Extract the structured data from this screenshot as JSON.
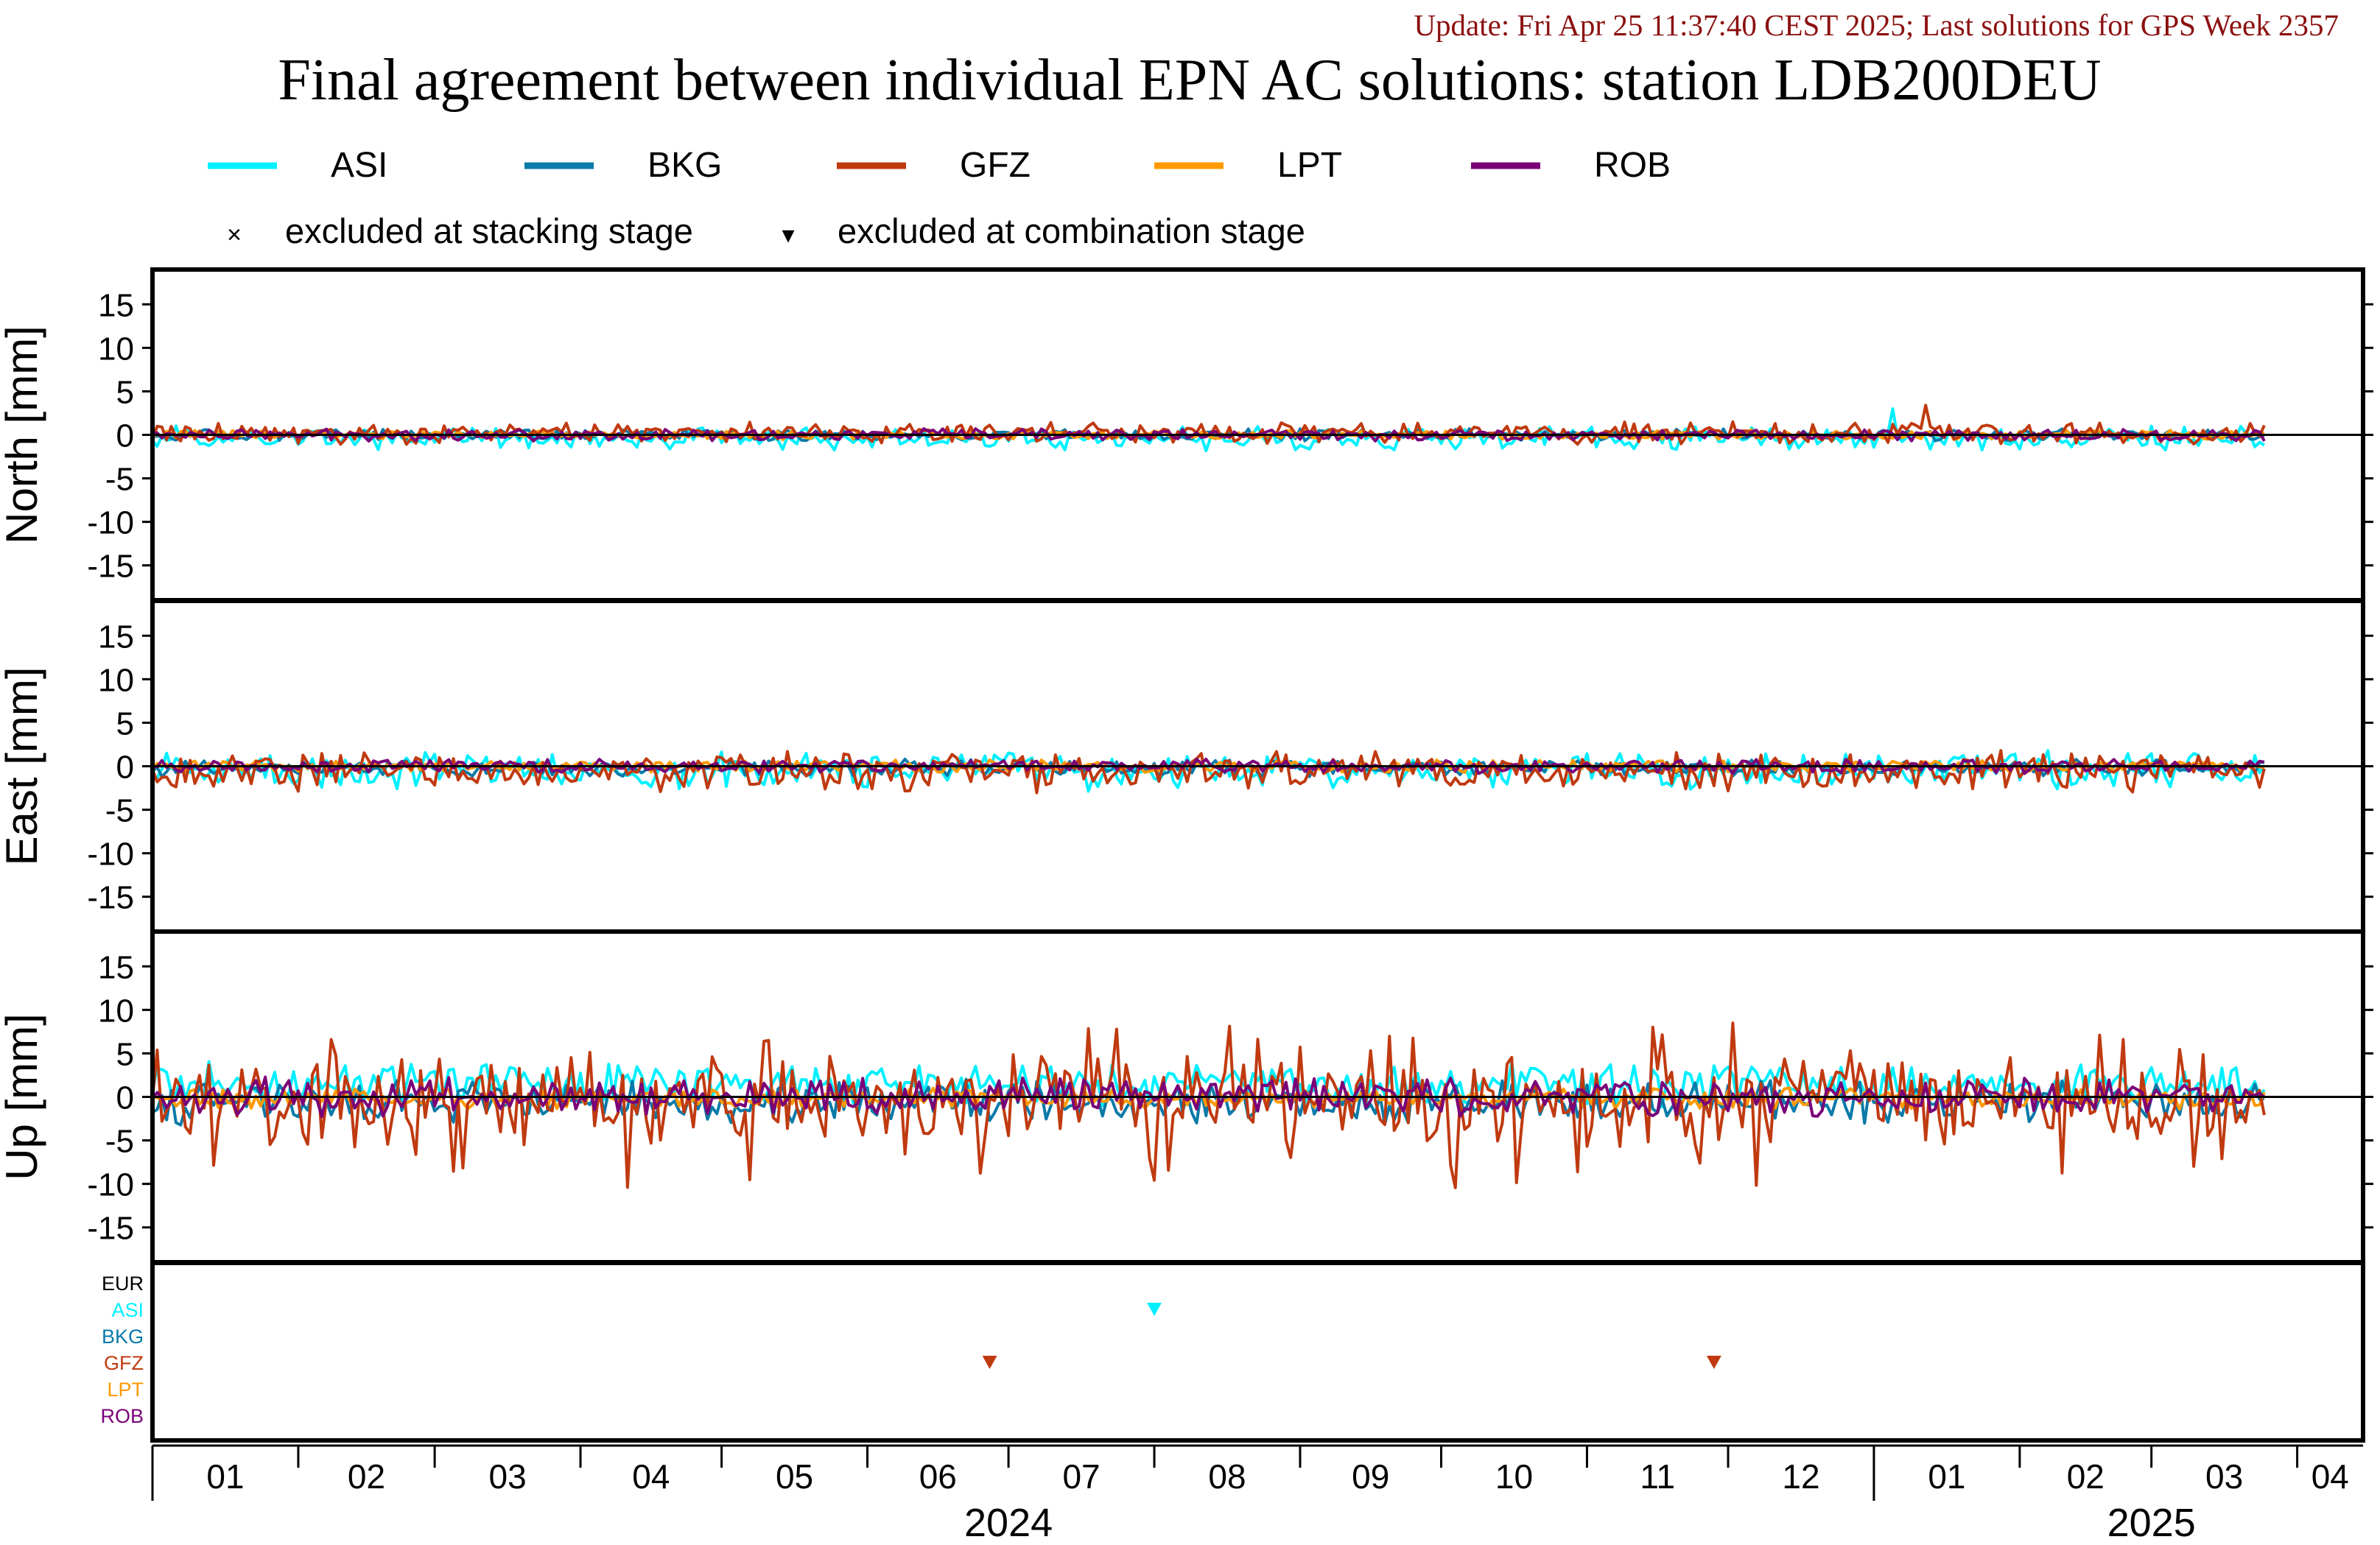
{
  "header": {
    "update": "Update: Fri Apr 25 11:37:40 CEST 2025; Last solutions for GPS Week 2357",
    "title": "Final agreement between individual EPN AC solutions: station LDB200DEU"
  },
  "legend": {
    "series": [
      {
        "name": "ASI",
        "color": "#00f0ff"
      },
      {
        "name": "BKG",
        "color": "#0a7aa8"
      },
      {
        "name": "GFZ",
        "color": "#c03a10"
      },
      {
        "name": "LPT",
        "color": "#ff9a00"
      },
      {
        "name": "ROB",
        "color": "#7a0078"
      }
    ],
    "markers": [
      {
        "symbol": "×",
        "label": "excluded at stacking stage"
      },
      {
        "symbol": "▾",
        "label": "excluded at combination stage"
      }
    ]
  },
  "colors": {
    "EUR": "#000000",
    "ASI": "#00f0ff",
    "BKG": "#0a7aa8",
    "GFZ": "#c03a10",
    "LPT": "#ff9a00",
    "ROB": "#7a0078"
  },
  "chart_data": [
    {
      "type": "line",
      "panel": "north",
      "ylabel": "North [mm]",
      "ylim": [
        -19,
        19
      ],
      "yticks": [
        15,
        10,
        5,
        0,
        -5,
        -10,
        -15
      ],
      "x_domain": [
        "2024-01-01",
        "2025-04-15"
      ],
      "series": [
        {
          "name": "ASI",
          "amplitude": 1.0,
          "bias": -0.4,
          "peak": {
            "date": "2025-01-05",
            "value": 3.0
          }
        },
        {
          "name": "BKG",
          "amplitude": 0.5,
          "bias": 0.0
        },
        {
          "name": "GFZ",
          "amplitude": 0.9,
          "bias": 0.2,
          "peak": {
            "date": "2025-01-12",
            "value": 3.4
          }
        },
        {
          "name": "LPT",
          "amplitude": 0.4,
          "bias": 0.0
        },
        {
          "name": "ROB",
          "amplitude": 0.5,
          "bias": 0.0
        }
      ]
    },
    {
      "type": "line",
      "panel": "east",
      "ylabel": "East [mm]",
      "ylim": [
        -19,
        19
      ],
      "yticks": [
        15,
        10,
        5,
        0,
        -5,
        -10,
        -15
      ],
      "x_domain": [
        "2024-01-01",
        "2025-04-15"
      ],
      "series": [
        {
          "name": "ASI",
          "amplitude": 1.6,
          "bias": -0.5
        },
        {
          "name": "BKG",
          "amplitude": 0.7,
          "bias": -0.2
        },
        {
          "name": "GFZ",
          "amplitude": 1.7,
          "bias": -0.6
        },
        {
          "name": "LPT",
          "amplitude": 0.5,
          "bias": 0.0
        },
        {
          "name": "ROB",
          "amplitude": 0.6,
          "bias": 0.0
        }
      ]
    },
    {
      "type": "line",
      "panel": "up",
      "ylabel": "Up [mm]",
      "ylim": [
        -19,
        19
      ],
      "yticks": [
        15,
        10,
        5,
        0,
        -5,
        -10,
        -15
      ],
      "x_domain": [
        "2024-01-01",
        "2025-04-15"
      ],
      "series": [
        {
          "name": "ASI",
          "amplitude": 1.8,
          "bias": 1.5
        },
        {
          "name": "BKG",
          "amplitude": 1.8,
          "bias": -0.6
        },
        {
          "name": "GFZ",
          "amplitude": 4.0,
          "bias": -0.3,
          "range": [
            -10.5,
            8.5
          ]
        },
        {
          "name": "LPT",
          "amplitude": 0.9,
          "bias": -0.2
        },
        {
          "name": "ROB",
          "amplitude": 1.6,
          "bias": 0.0
        }
      ]
    },
    {
      "type": "scatter",
      "panel": "exclusions",
      "rows": [
        "EUR",
        "ASI",
        "BKG",
        "GFZ",
        "LPT",
        "ROB"
      ],
      "points": [
        {
          "row": "ASI",
          "date": "2024-08-01",
          "marker": "▾"
        },
        {
          "row": "GFZ",
          "date": "2024-06-27",
          "marker": "▾"
        },
        {
          "row": "GFZ",
          "date": "2024-11-28",
          "marker": "▾"
        }
      ]
    }
  ],
  "xaxis": {
    "month_labels": [
      "01",
      "02",
      "03",
      "04",
      "05",
      "06",
      "07",
      "08",
      "09",
      "10",
      "11",
      "12",
      "01",
      "02",
      "03",
      "04"
    ],
    "years": [
      {
        "label": "2024",
        "center": "2024-07-01"
      },
      {
        "label": "2025",
        "center": "2025-03-01"
      }
    ]
  }
}
